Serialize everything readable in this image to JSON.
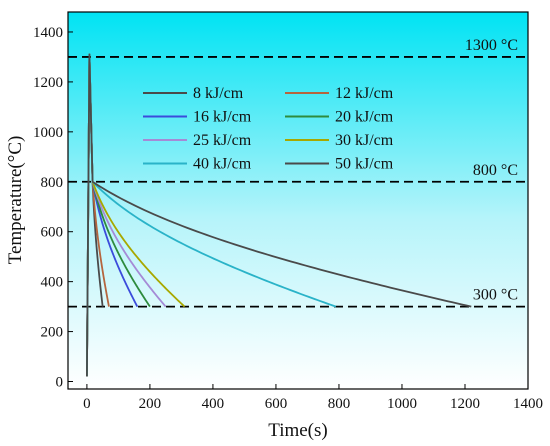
{
  "chart_data": {
    "type": "line",
    "title": "",
    "xlabel": "Time(s)",
    "ylabel": "Temperature(°C)",
    "xlim": [
      -60,
      1400
    ],
    "ylim": [
      -30,
      1480
    ],
    "xticks": [
      0,
      200,
      400,
      600,
      800,
      1000,
      1200,
      1400
    ],
    "yticks": [
      0,
      200,
      400,
      600,
      800,
      1000,
      1200,
      1400
    ],
    "xtick_labels": [
      "0",
      "200",
      "400",
      "600",
      "800",
      "1000",
      "1200",
      "1400"
    ],
    "ytick_labels": [
      "0",
      "200",
      "400",
      "600",
      "800",
      "1000",
      "1200",
      "1400"
    ],
    "grid": false,
    "background": "gradient cyan (#00e5f5) at top to white at bottom",
    "legend_position": "upper-center, two columns",
    "reference_lines": [
      {
        "y": 1300,
        "label": "1300 °C",
        "style": "dashed",
        "color": "#000000"
      },
      {
        "y": 800,
        "label": "800 °C",
        "style": "dashed",
        "color": "#000000"
      },
      {
        "y": 300,
        "label": "300 °C",
        "style": "dashed",
        "color": "#000000"
      }
    ],
    "series": [
      {
        "name": "8 kJ/cm",
        "color": "#4a4a4a",
        "peak_time": 8,
        "cool_start_time": 18,
        "end_time": 50
      },
      {
        "name": "12 kJ/cm",
        "color": "#b5653e",
        "peak_time": 8,
        "cool_start_time": 18,
        "end_time": 70
      },
      {
        "name": "16 kJ/cm",
        "color": "#3b4bdb",
        "peak_time": 8,
        "cool_start_time": 18,
        "end_time": 160
      },
      {
        "name": "20 kJ/cm",
        "color": "#2e8b3d",
        "peak_time": 8,
        "cool_start_time": 18,
        "end_time": 200
      },
      {
        "name": "25 kJ/cm",
        "color": "#a58ad6",
        "peak_time": 8,
        "cool_start_time": 18,
        "end_time": 250
      },
      {
        "name": "30 kJ/cm",
        "color": "#a8a800",
        "peak_time": 8,
        "cool_start_time": 18,
        "end_time": 310
      },
      {
        "name": "40 kJ/cm",
        "color": "#2ab3c8",
        "peak_time": 8,
        "cool_start_time": 18,
        "end_time": 790
      },
      {
        "name": "50 kJ/cm",
        "color": "#4a4a4a",
        "peak_time": 8,
        "cool_start_time": 18,
        "end_time": 1220
      }
    ],
    "curve_shape": {
      "start_temperature": 20,
      "peak_temperature": 1310,
      "cooling_start_temperature": 800,
      "end_temperature": 300
    }
  }
}
